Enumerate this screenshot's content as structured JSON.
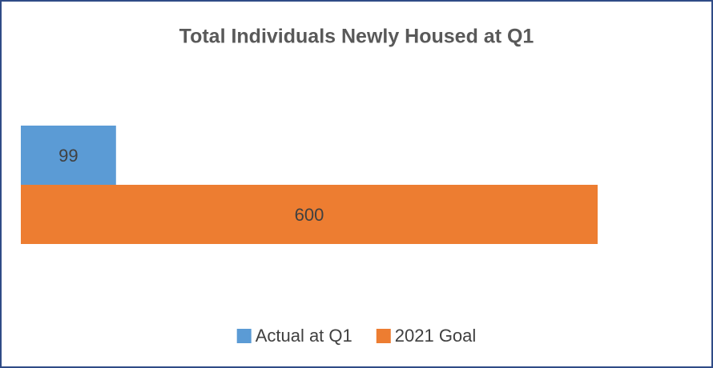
{
  "chart_data": {
    "type": "hbar",
    "title": "Total Individuals Newly Housed at Q1",
    "categories": [
      null
    ],
    "series": [
      {
        "name": "Actual at Q1",
        "color": "#5b9bd5",
        "values": [
          99
        ]
      },
      {
        "name": "2021 Goal",
        "color": "#ed7d31",
        "values": [
          600
        ]
      }
    ],
    "legend": "bottom"
  }
}
